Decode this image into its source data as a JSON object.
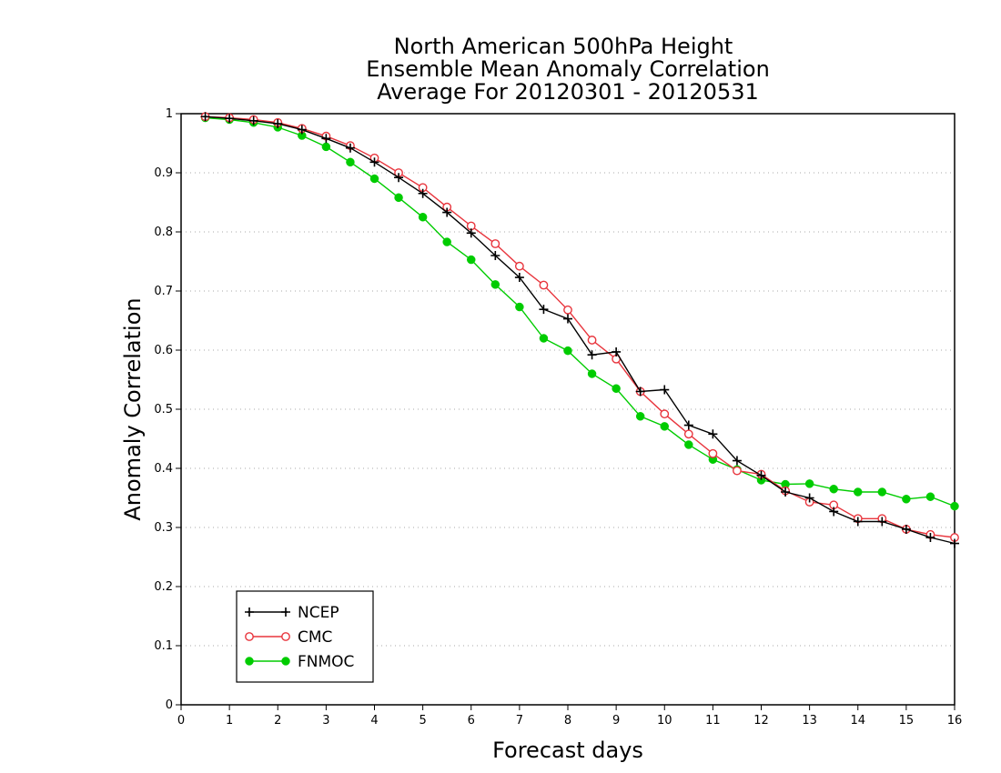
{
  "chart_data": {
    "type": "line",
    "title_lines": [
      "North American 500hPa Height",
      "Ensemble Mean Anomaly Correlation",
      "Average For 20120301 - 20120531"
    ],
    "xlabel": "Forecast days",
    "ylabel": "Anomaly Correlation",
    "xlim": [
      0,
      16
    ],
    "ylim": [
      0,
      1
    ],
    "x_ticks": [
      0,
      1,
      2,
      3,
      4,
      5,
      6,
      7,
      8,
      9,
      10,
      11,
      12,
      13,
      14,
      15,
      16
    ],
    "y_ticks": [
      0,
      0.1,
      0.2,
      0.3,
      0.4,
      0.5,
      0.6,
      0.7,
      0.8,
      0.9,
      1
    ],
    "y_tick_labels": [
      "0",
      "0.1",
      "0.2",
      "0.3",
      "0.4",
      "0.5",
      "0.6",
      "0.7",
      "0.8",
      "0.9",
      "1"
    ],
    "x_tick_labels": [
      "0",
      "1",
      "2",
      "3",
      "4",
      "5",
      "6",
      "7",
      "8",
      "9",
      "10",
      "11",
      "12",
      "13",
      "14",
      "15",
      "16"
    ],
    "grid": "horizontal-dotted",
    "legend_position": "bottom-left",
    "x": [
      0.5,
      1,
      1.5,
      2,
      2.5,
      3,
      3.5,
      4,
      4.5,
      5,
      5.5,
      6,
      6.5,
      7,
      7.5,
      8,
      8.5,
      9,
      9.5,
      10,
      10.5,
      11,
      11.5,
      12,
      12.5,
      13,
      13.5,
      14,
      14.5,
      15,
      15.5,
      16
    ],
    "series": [
      {
        "name": "NCEP",
        "color": "#000000",
        "marker": "plus",
        "values": [
          0.995,
          0.992,
          0.988,
          0.983,
          0.973,
          0.958,
          0.942,
          0.918,
          0.892,
          0.865,
          0.833,
          0.798,
          0.76,
          0.723,
          0.669,
          0.653,
          0.592,
          0.597,
          0.53,
          0.533,
          0.473,
          0.458,
          0.413,
          0.388,
          0.36,
          0.35,
          0.327,
          0.31,
          0.31,
          0.297,
          0.283,
          0.273
        ]
      },
      {
        "name": "CMC",
        "color": "#e8353d",
        "marker": "open-circle",
        "values": [
          0.995,
          0.993,
          0.99,
          0.985,
          0.975,
          0.962,
          0.946,
          0.925,
          0.9,
          0.875,
          0.842,
          0.81,
          0.78,
          0.742,
          0.71,
          0.668,
          0.617,
          0.585,
          0.53,
          0.492,
          0.458,
          0.425,
          0.396,
          0.39,
          0.362,
          0.343,
          0.338,
          0.315,
          0.315,
          0.297,
          0.288,
          0.283
        ]
      },
      {
        "name": "FNMOC",
        "color": "#00cc00",
        "marker": "filled-circle",
        "values": [
          0.993,
          0.99,
          0.985,
          0.977,
          0.963,
          0.944,
          0.918,
          0.89,
          0.858,
          0.825,
          0.783,
          0.753,
          0.711,
          0.673,
          0.62,
          0.599,
          0.56,
          0.535,
          0.488,
          0.471,
          0.44,
          0.415,
          0.398,
          0.38,
          0.373,
          0.374,
          0.365,
          0.36,
          0.36,
          0.348,
          0.352,
          0.336
        ]
      }
    ]
  }
}
